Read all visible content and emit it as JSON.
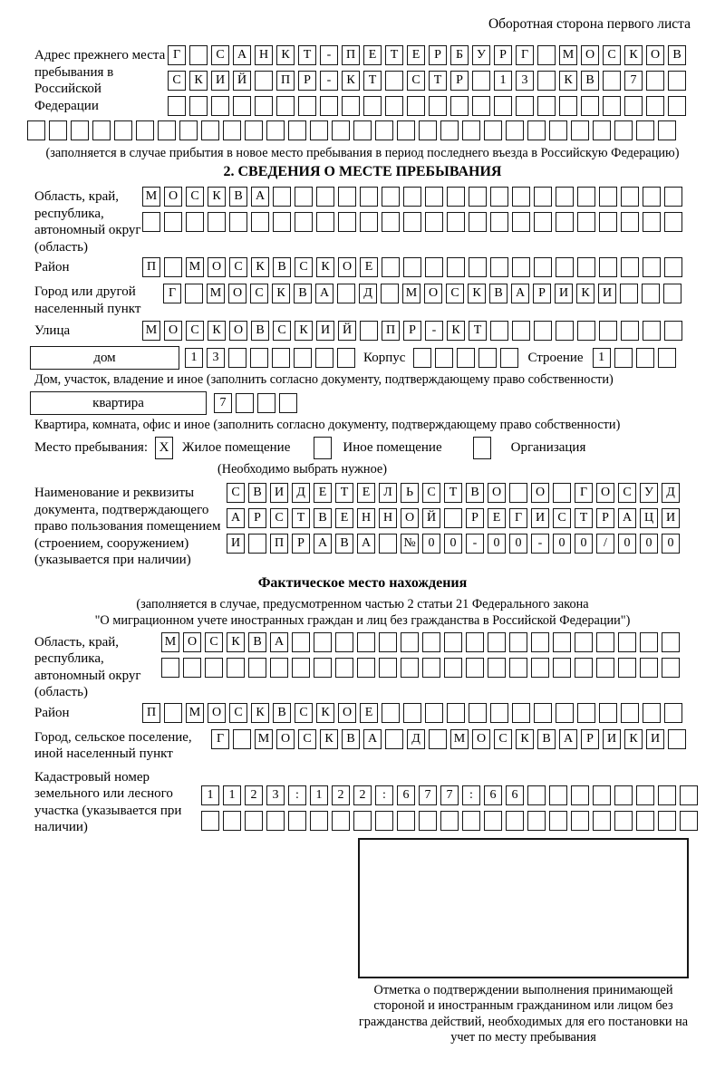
{
  "header": {
    "page_note": "Оборотная сторона первого листа"
  },
  "prev_address": {
    "label": "Адрес прежнего места пребывания в Российской Федерации",
    "line1": {
      "chars": "Г САНКТ-ПЕТЕРБУРГ МОСКОВ",
      "len": 24
    },
    "line2": {
      "chars": "СКИЙ ПР-КТ СТР 13 КВ 7",
      "len": 24
    },
    "line3": {
      "chars": "",
      "len": 24
    },
    "line4": {
      "chars": "",
      "len": 30
    },
    "note": "(заполняется в случае прибытия в новое место пребывания в период последнего въезда в Российскую Федерацию)"
  },
  "section2": {
    "title": "2. СВЕДЕНИЯ О МЕСТЕ ПРЕБЫВАНИЯ",
    "region": {
      "label": "Область, край, республика, автономный округ (область)",
      "line1": {
        "chars": "МОСКВА",
        "len": 25
      },
      "line2": {
        "chars": "",
        "len": 25
      }
    },
    "district": {
      "label": "Район",
      "line1": {
        "chars": "П МОСКВСКОЕ",
        "len": 25
      }
    },
    "city": {
      "label": "Город или другой населенный пункт",
      "line1": {
        "chars": "Г МОСКВА Д МОСКВАРИКИ",
        "len": 24
      }
    },
    "street": {
      "label": "Улица",
      "line1": {
        "chars": "МОСКОВСКИЙ ПР-КТ",
        "len": 25
      }
    },
    "house": {
      "box_label": "дом",
      "number": {
        "chars": "13",
        "len": 8
      },
      "korpus_label": "Корпус",
      "korpus": {
        "chars": "",
        "len": 5
      },
      "stroenie_label": "Строение",
      "stroenie": {
        "chars": "1",
        "len": 4
      },
      "note": "Дом, участок, владение и иное (заполнить согласно документу, подтверждающему право собственности)"
    },
    "apartment": {
      "box_label": "квартира",
      "number": {
        "chars": "7",
        "len": 4
      },
      "note": "Квартира, комната, офис и иное (заполнить согласно документу, подтверждающему право собственности)"
    },
    "stay_type": {
      "label": "Место пребывания:",
      "options": [
        {
          "label": "Жилое помещение",
          "mark": "X"
        },
        {
          "label": "Иное помещение",
          "mark": ""
        },
        {
          "label": "Организация",
          "mark": ""
        }
      ],
      "note": "(Необходимо выбрать нужное)"
    },
    "document": {
      "label": "Наименование и реквизиты документа, подтверждающего право пользования помещением (строением, сооружением) (указывается при наличии)",
      "line1": {
        "chars": "СВИДЕТЕЛЬСТВО О ГОСУД",
        "len": 21
      },
      "line2": {
        "chars": "АРСТВЕННОЙ РЕГИСТРАЦИ",
        "len": 21
      },
      "line3": {
        "chars": "И ПРАВА №00-00-00/000",
        "len": 21
      }
    }
  },
  "actual_location": {
    "title": "Фактическое место нахождения",
    "note_line1": "(заполняется в случае, предусмотренном частью 2 статьи 21 Федерального закона",
    "note_line2": "\"О миграционном учете иностранных граждан и лиц без гражданства в Российской Федерации\")",
    "region": {
      "label": "Область, край, республика, автономный округ (область)",
      "line1": {
        "chars": "МОСКВА",
        "len": 24
      },
      "line2": {
        "chars": "",
        "len": 24
      }
    },
    "district": {
      "label": "Район",
      "line1": {
        "chars": "П МОСКВСКОЕ",
        "len": 25
      }
    },
    "city": {
      "label": "Город, сельское поселение, иной населенный пункт",
      "line1": {
        "chars": "Г МОСКВА Д МОСКВАРИКИ",
        "len": 22
      }
    },
    "cadastral": {
      "label": "Кадастровый номер земельного или лесного участка (указывается при наличии)",
      "line1": {
        "chars": "1123:122:677:66",
        "len": 23
      },
      "line2": {
        "chars": "",
        "len": 23
      }
    },
    "stamp_caption": "Отметка о подтверждении выполнения принимающей стороной и иностранным гражданином или лицом без гражданства действий, необходимых для его постановки на учет по месту пребывания"
  }
}
